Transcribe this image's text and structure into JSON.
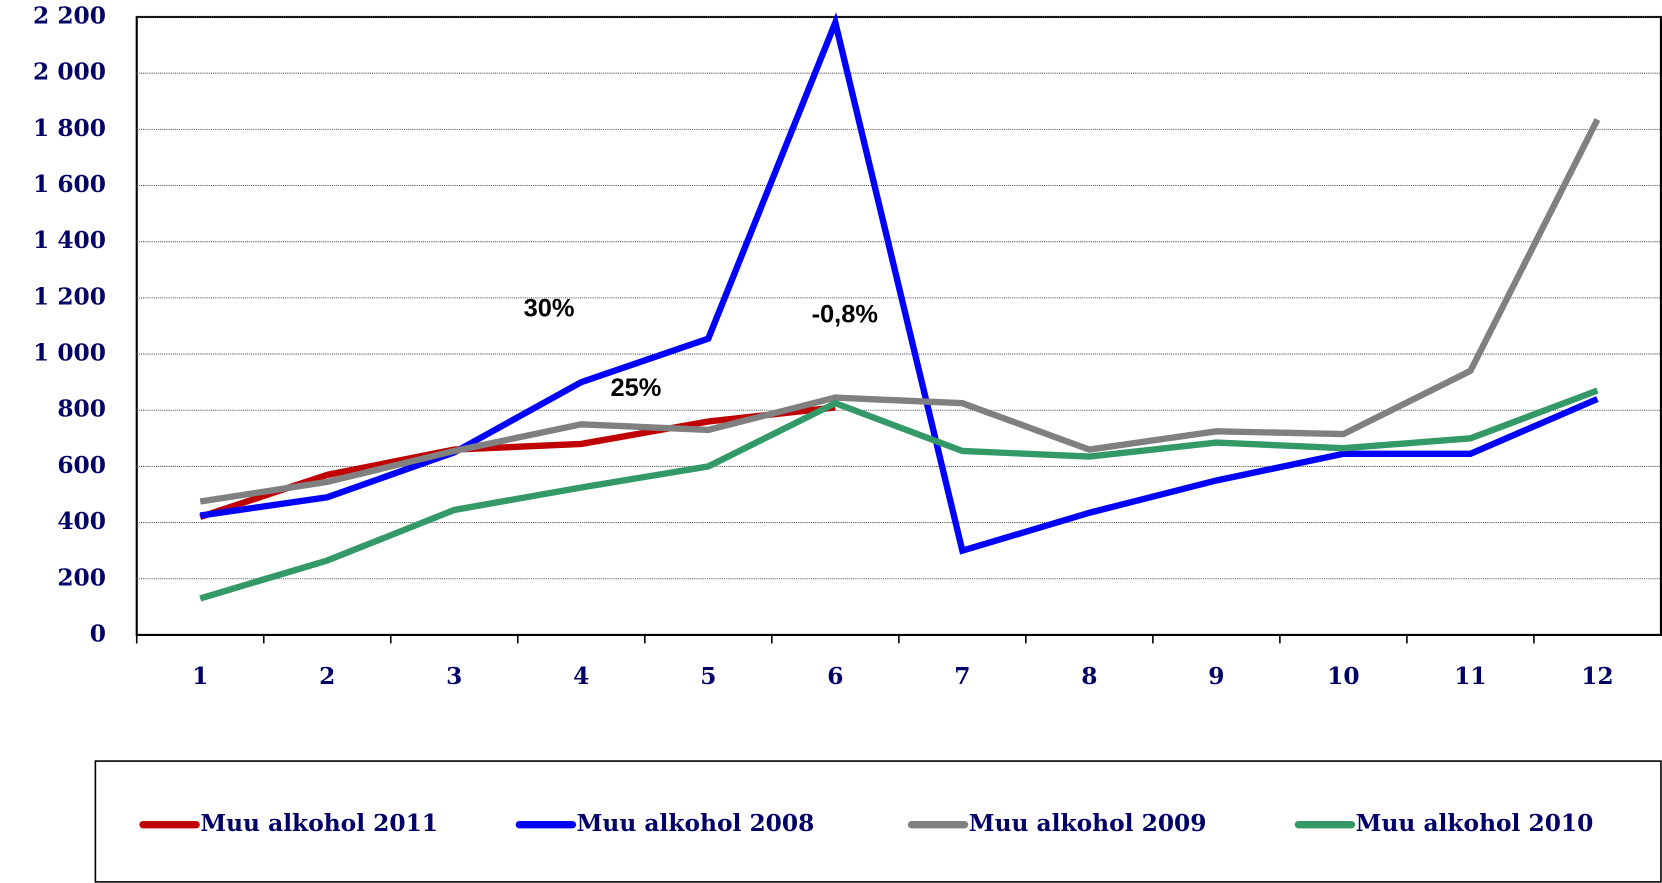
{
  "chart_data": {
    "type": "line",
    "categories": [
      "1",
      "2",
      "3",
      "4",
      "5",
      "6",
      "7",
      "8",
      "9",
      "10",
      "11",
      "12"
    ],
    "series": [
      {
        "name": "Muu alkohol 2011",
        "color": "#c00000",
        "values": [
          420,
          570,
          660,
          680,
          760,
          810,
          null,
          null,
          null,
          null,
          null,
          null
        ]
      },
      {
        "name": "Muu alkohol 2008",
        "color": "#0000ff",
        "values": [
          425,
          490,
          650,
          900,
          1055,
          2180,
          300,
          435,
          550,
          645,
          645,
          840
        ]
      },
      {
        "name": "Muu alkohol 2009",
        "color": "#808080",
        "values": [
          475,
          545,
          655,
          750,
          730,
          845,
          825,
          660,
          725,
          715,
          940,
          1835
        ]
      },
      {
        "name": "Muu alkohol 2010",
        "color": "#339966",
        "values": [
          130,
          265,
          445,
          525,
          600,
          825,
          655,
          635,
          685,
          665,
          700,
          870
        ]
      }
    ],
    "annotations": [
      "30%",
      "25%",
      "-0,8%"
    ],
    "ylim": [
      0,
      2200
    ],
    "yticks": [
      0,
      200,
      400,
      600,
      800,
      {
        "value": 1000,
        "label": "1 000"
      },
      {
        "value": 1200,
        "label": "1 200"
      },
      {
        "value": 1400,
        "label": "1 400"
      },
      {
        "value": 1600,
        "label": "1 600"
      },
      {
        "value": 1800,
        "label": "1 800"
      },
      {
        "value": 2000,
        "label": "2 000"
      },
      {
        "value": 2200,
        "label": "2 200"
      }
    ],
    "grid": true
  }
}
